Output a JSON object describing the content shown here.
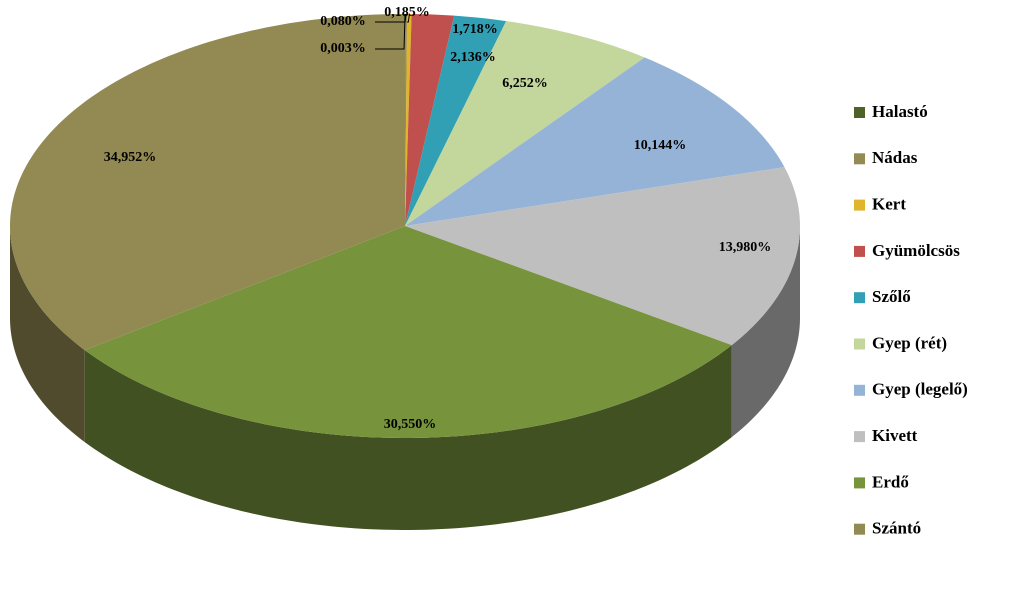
{
  "chart_data": {
    "type": "pie3d",
    "categories": [
      "Halastó",
      "Nádas",
      "Kert",
      "Gyümölcsös",
      "Szőlő",
      "Gyep (rét)",
      "Gyep (legelő)",
      "Kivett",
      "Erdő",
      "Szántó"
    ],
    "values": [
      0.003,
      0.08,
      0.185,
      1.718,
      2.136,
      6.252,
      10.144,
      13.98,
      30.55,
      34.952
    ],
    "value_labels": [
      "0,003%",
      "0,080%",
      "0,185%",
      "1,718%",
      "2,136%",
      "6,252%",
      "10,144%",
      "13,980%",
      "30,550%",
      "34,952%"
    ],
    "colors": [
      "#4f6228",
      "#948a54",
      "#e0b52c",
      "#c0504d",
      "#31a0b4",
      "#c3d69b",
      "#95b3d7",
      "#bfbfbf",
      "#77933c",
      "#938953"
    ],
    "legend": "right"
  }
}
